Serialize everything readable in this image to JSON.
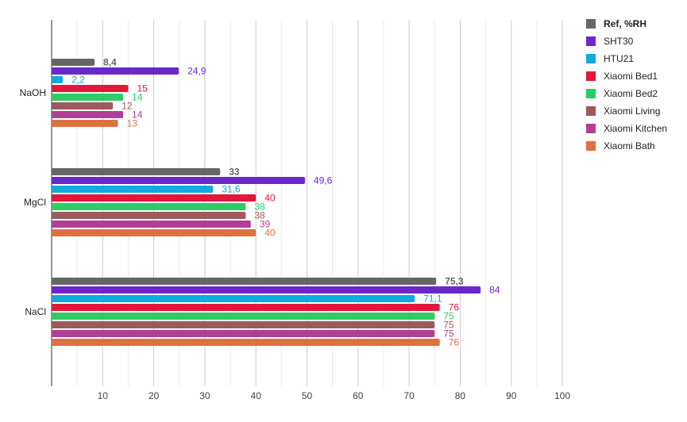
{
  "chart_data": {
    "type": "bar",
    "orientation": "horizontal",
    "title": "",
    "xlabel": "",
    "ylabel": "",
    "xlim": [
      0,
      100
    ],
    "x_ticks": [
      10,
      20,
      30,
      40,
      50,
      60,
      70,
      80,
      90,
      100
    ],
    "minor_gridlines_per_major": 2,
    "grid": true,
    "legend_position": "right",
    "categories": [
      "NaOH",
      "MgCl",
      "NaCl"
    ],
    "series": [
      {
        "name": "Ref, %RH",
        "color": "#666666",
        "bold": true,
        "values": [
          8.4,
          33,
          75.3
        ],
        "labels": [
          "8,4",
          "33",
          "75,3"
        ]
      },
      {
        "name": "SHT30",
        "color": "#6a27cc",
        "values": [
          24.9,
          49.6,
          84
        ],
        "labels": [
          "24,9",
          "49,6",
          "84"
        ]
      },
      {
        "name": "HTU21",
        "color": "#12a8e0",
        "values": [
          2.2,
          31.6,
          71.1
        ],
        "labels": [
          "2,2",
          "31,6",
          "71,1"
        ]
      },
      {
        "name": "Xiaomi Bed1",
        "color": "#e2173a",
        "values": [
          15,
          40,
          76
        ],
        "labels": [
          "15",
          "40",
          "76"
        ]
      },
      {
        "name": "Xiaomi Bed2",
        "color": "#2ecc62",
        "values": [
          14,
          38,
          75
        ],
        "labels": [
          "14",
          "38",
          "75"
        ]
      },
      {
        "name": "Xiaomi Living",
        "color": "#9b5a5e",
        "values": [
          12,
          38,
          75
        ],
        "labels": [
          "12",
          "38",
          "75"
        ]
      },
      {
        "name": "Xiaomi Kitchen",
        "color": "#b13f93",
        "values": [
          14,
          39,
          75
        ],
        "labels": [
          "14",
          "39",
          "75"
        ]
      },
      {
        "name": "Xiaomi Bath",
        "color": "#e07040",
        "values": [
          13,
          40,
          76
        ],
        "labels": [
          "13",
          "40",
          "76"
        ]
      }
    ]
  }
}
